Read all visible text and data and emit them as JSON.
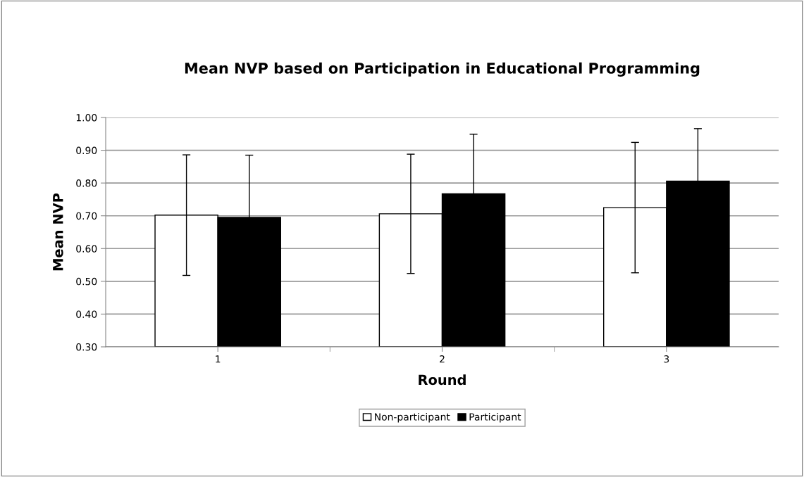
{
  "chart_data": {
    "type": "bar",
    "title": "Mean NVP based on Participation in Educational Programming",
    "xlabel": "Round",
    "ylabel": "Mean NVP",
    "categories": [
      "1",
      "2",
      "3"
    ],
    "series": [
      {
        "name": "Non-participant",
        "color": "#ffffff",
        "values": [
          0.702,
          0.706,
          0.725
        ],
        "errors": [
          0.184,
          0.182,
          0.199
        ]
      },
      {
        "name": "Participant",
        "color": "#000000",
        "values": [
          0.695,
          0.767,
          0.806
        ],
        "errors": [
          0.19,
          0.182,
          0.16
        ]
      }
    ],
    "ylim": [
      0.3,
      1.0
    ],
    "yticks": [
      {
        "value": 0.3,
        "label": "0.30"
      },
      {
        "value": 0.4,
        "label": "0.40"
      },
      {
        "value": 0.5,
        "label": "0.50"
      },
      {
        "value": 0.6,
        "label": "0.60"
      },
      {
        "value": 0.7,
        "label": "0.70"
      },
      {
        "value": 0.8,
        "label": "0.80"
      },
      {
        "value": 0.9,
        "label": "0.90"
      },
      {
        "value": 1.0,
        "label": "1.00"
      }
    ],
    "grid": "y",
    "legend": "bottom"
  }
}
